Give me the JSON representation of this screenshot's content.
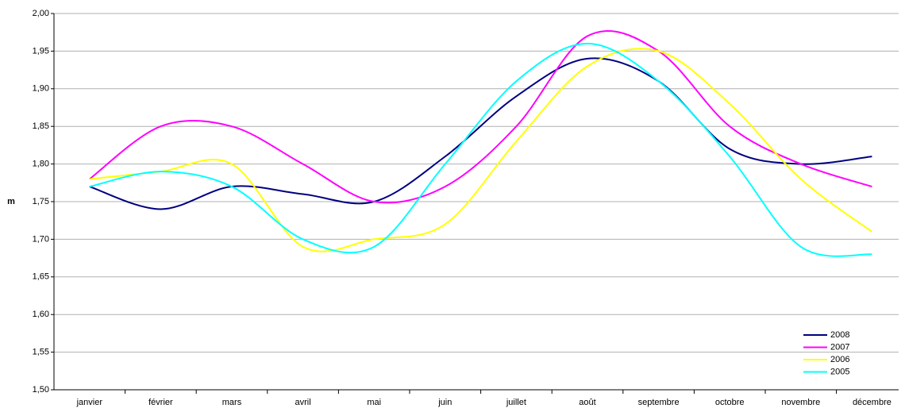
{
  "chart_data": {
    "type": "line",
    "y_label": "m",
    "categories": [
      "janvier",
      "février",
      "mars",
      "avril",
      "mai",
      "juin",
      "juillet",
      "août",
      "septembre",
      "octobre",
      "novembre",
      "décembre"
    ],
    "series": [
      {
        "name": "2008",
        "color": "#000080",
        "values": [
          1.77,
          1.74,
          1.77,
          1.76,
          1.75,
          1.81,
          1.89,
          1.94,
          1.91,
          1.82,
          1.8,
          1.81
        ]
      },
      {
        "name": "2007",
        "color": "#ff00ff",
        "values": [
          1.78,
          1.85,
          1.85,
          1.8,
          1.75,
          1.77,
          1.85,
          1.97,
          1.95,
          1.85,
          1.8,
          1.77
        ]
      },
      {
        "name": "2006",
        "color": "#ffff00",
        "values": [
          1.78,
          1.79,
          1.8,
          1.69,
          1.7,
          1.72,
          1.83,
          1.93,
          1.95,
          1.88,
          1.78,
          1.71
        ]
      },
      {
        "name": "2005",
        "color": "#00ffff",
        "values": [
          1.77,
          1.79,
          1.77,
          1.7,
          1.69,
          1.8,
          1.91,
          1.96,
          1.91,
          1.81,
          1.69,
          1.68
        ]
      }
    ],
    "ylim": [
      1.5,
      2.0
    ],
    "yticks": [
      {
        "value": 1.5,
        "label": "1,50"
      },
      {
        "value": 1.55,
        "label": "1,55"
      },
      {
        "value": 1.6,
        "label": "1,60"
      },
      {
        "value": 1.65,
        "label": "1,65"
      },
      {
        "value": 1.7,
        "label": "1,70"
      },
      {
        "value": 1.75,
        "label": "1,75"
      },
      {
        "value": 1.8,
        "label": "1,80"
      },
      {
        "value": 1.85,
        "label": "1,85"
      },
      {
        "value": 1.9,
        "label": "1,90"
      },
      {
        "value": 1.95,
        "label": "1,95"
      },
      {
        "value": 2.0,
        "label": "2,00"
      }
    ],
    "grid": true,
    "smooth": true,
    "legend": "lower right"
  }
}
